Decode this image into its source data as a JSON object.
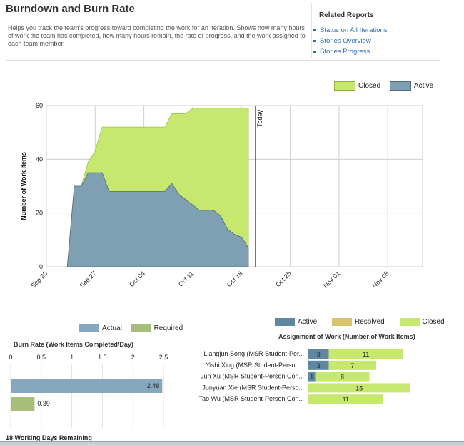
{
  "header": {
    "title": "Burndown and Burn Rate",
    "description": "Helps you track the team's progress toward completing the work for an iteration. Shows how many hours of work the team has completed, how many hours remain, the rate of progress, and the work assigned to each team member."
  },
  "related": {
    "title": "Related Reports",
    "items": [
      "Status on All Iterations",
      "Stories Overview",
      "Stories Progress"
    ]
  },
  "colors": {
    "closed": "#c6e86f",
    "active": "#7f9fb2",
    "resolved": "#d8c46a",
    "actual": "#86a8bf",
    "required": "#a7be7a",
    "today": "#cc2a2a",
    "link": "#2a6fb8"
  },
  "chart_data": [
    {
      "type": "area",
      "ylabel": "Number of Work Items",
      "xlabel": "",
      "ylim": [
        0,
        60
      ],
      "yticks": [
        "0",
        "20",
        "40",
        "60"
      ],
      "xticks": [
        "Sep 20",
        "Sep 27",
        "Oct 04",
        "Oct 11",
        "Oct 18",
        "Oct 25",
        "Nov 01",
        "Nov 08"
      ],
      "today_label": "Today",
      "legend": [
        "Closed",
        "Active"
      ],
      "legend_position": "top-right",
      "x": [
        "2010-09-23",
        "2010-09-24",
        "2010-09-25",
        "2010-09-26",
        "2010-09-27",
        "2010-09-28",
        "2010-09-29",
        "2010-09-30",
        "2010-10-01",
        "2010-10-02",
        "2010-10-03",
        "2010-10-04",
        "2010-10-05",
        "2010-10-06",
        "2010-10-07",
        "2010-10-08",
        "2010-10-09",
        "2010-10-10",
        "2010-10-11",
        "2010-10-12",
        "2010-10-13",
        "2010-10-14",
        "2010-10-15",
        "2010-10-16",
        "2010-10-17",
        "2010-10-18",
        "2010-10-19"
      ],
      "series": [
        {
          "name": "Active",
          "values": [
            0,
            30,
            30,
            35,
            35,
            35,
            28,
            28,
            28,
            28,
            28,
            28,
            28,
            28,
            28,
            31,
            27,
            25,
            23,
            21,
            21,
            21,
            19,
            14,
            12,
            11,
            7
          ]
        },
        {
          "name": "Closed",
          "values": [
            0,
            0,
            0,
            4,
            8,
            17,
            24,
            24,
            24,
            24,
            24,
            24,
            24,
            24,
            24,
            26,
            30,
            32,
            36,
            38,
            38,
            38,
            40,
            45,
            47,
            48,
            52
          ]
        }
      ]
    },
    {
      "type": "bar",
      "title": "Burn Rate (Work Items Completed/Day)",
      "categories": [
        "Actual",
        "Required"
      ],
      "values": [
        2.48,
        0.39
      ],
      "xlim": [
        0,
        2.5
      ],
      "xticks": [
        "0",
        "0.5",
        "1",
        "1.5",
        "2",
        "2.5"
      ],
      "legend": [
        "Actual",
        "Required"
      ]
    },
    {
      "type": "bar",
      "title": "Assignment of Work (Number of Work Items)",
      "categories": [
        "Liangjun Song (MSR Student-Per...",
        "Yishi Xing (MSR Student-Person...",
        "Jun Xu (MSR Student-Person Con...",
        "Junyuan Xie (MSR Student-Perso...",
        "Tao Wu (MSR Student-Person Con..."
      ],
      "legend": [
        "Active",
        "Resolved",
        "Closed"
      ],
      "series": [
        {
          "name": "Active",
          "values": [
            3,
            3,
            1,
            0,
            0
          ]
        },
        {
          "name": "Resolved",
          "values": [
            0,
            0,
            0,
            0,
            0
          ]
        },
        {
          "name": "Closed",
          "values": [
            11,
            7,
            8,
            15,
            11
          ]
        }
      ]
    }
  ],
  "footer": {
    "remaining": "18 Working Days Remaining"
  }
}
